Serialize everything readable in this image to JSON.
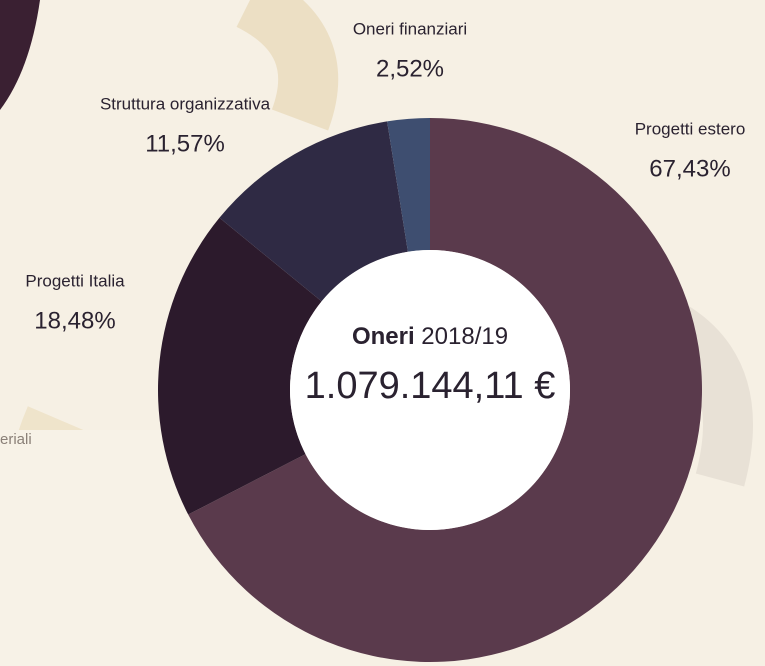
{
  "chart_data": {
    "type": "pie",
    "donut": true,
    "categories": [
      "Progetti estero",
      "Progetti Italia",
      "Struttura organizzativa",
      "Oneri finanziari"
    ],
    "values": [
      67.43,
      18.48,
      11.57,
      2.52
    ],
    "value_labels": [
      "67,43%",
      "18,48%",
      "11,57%",
      "2,52%"
    ],
    "colors": [
      "#5a3a4c",
      "#2c1a2c",
      "#2f2a44",
      "#3e4e70"
    ],
    "center_title": "Oneri",
    "center_subtitle": "2018/19",
    "center_total": "1.079.144,11 €",
    "annotations": [
      "eriali"
    ]
  }
}
